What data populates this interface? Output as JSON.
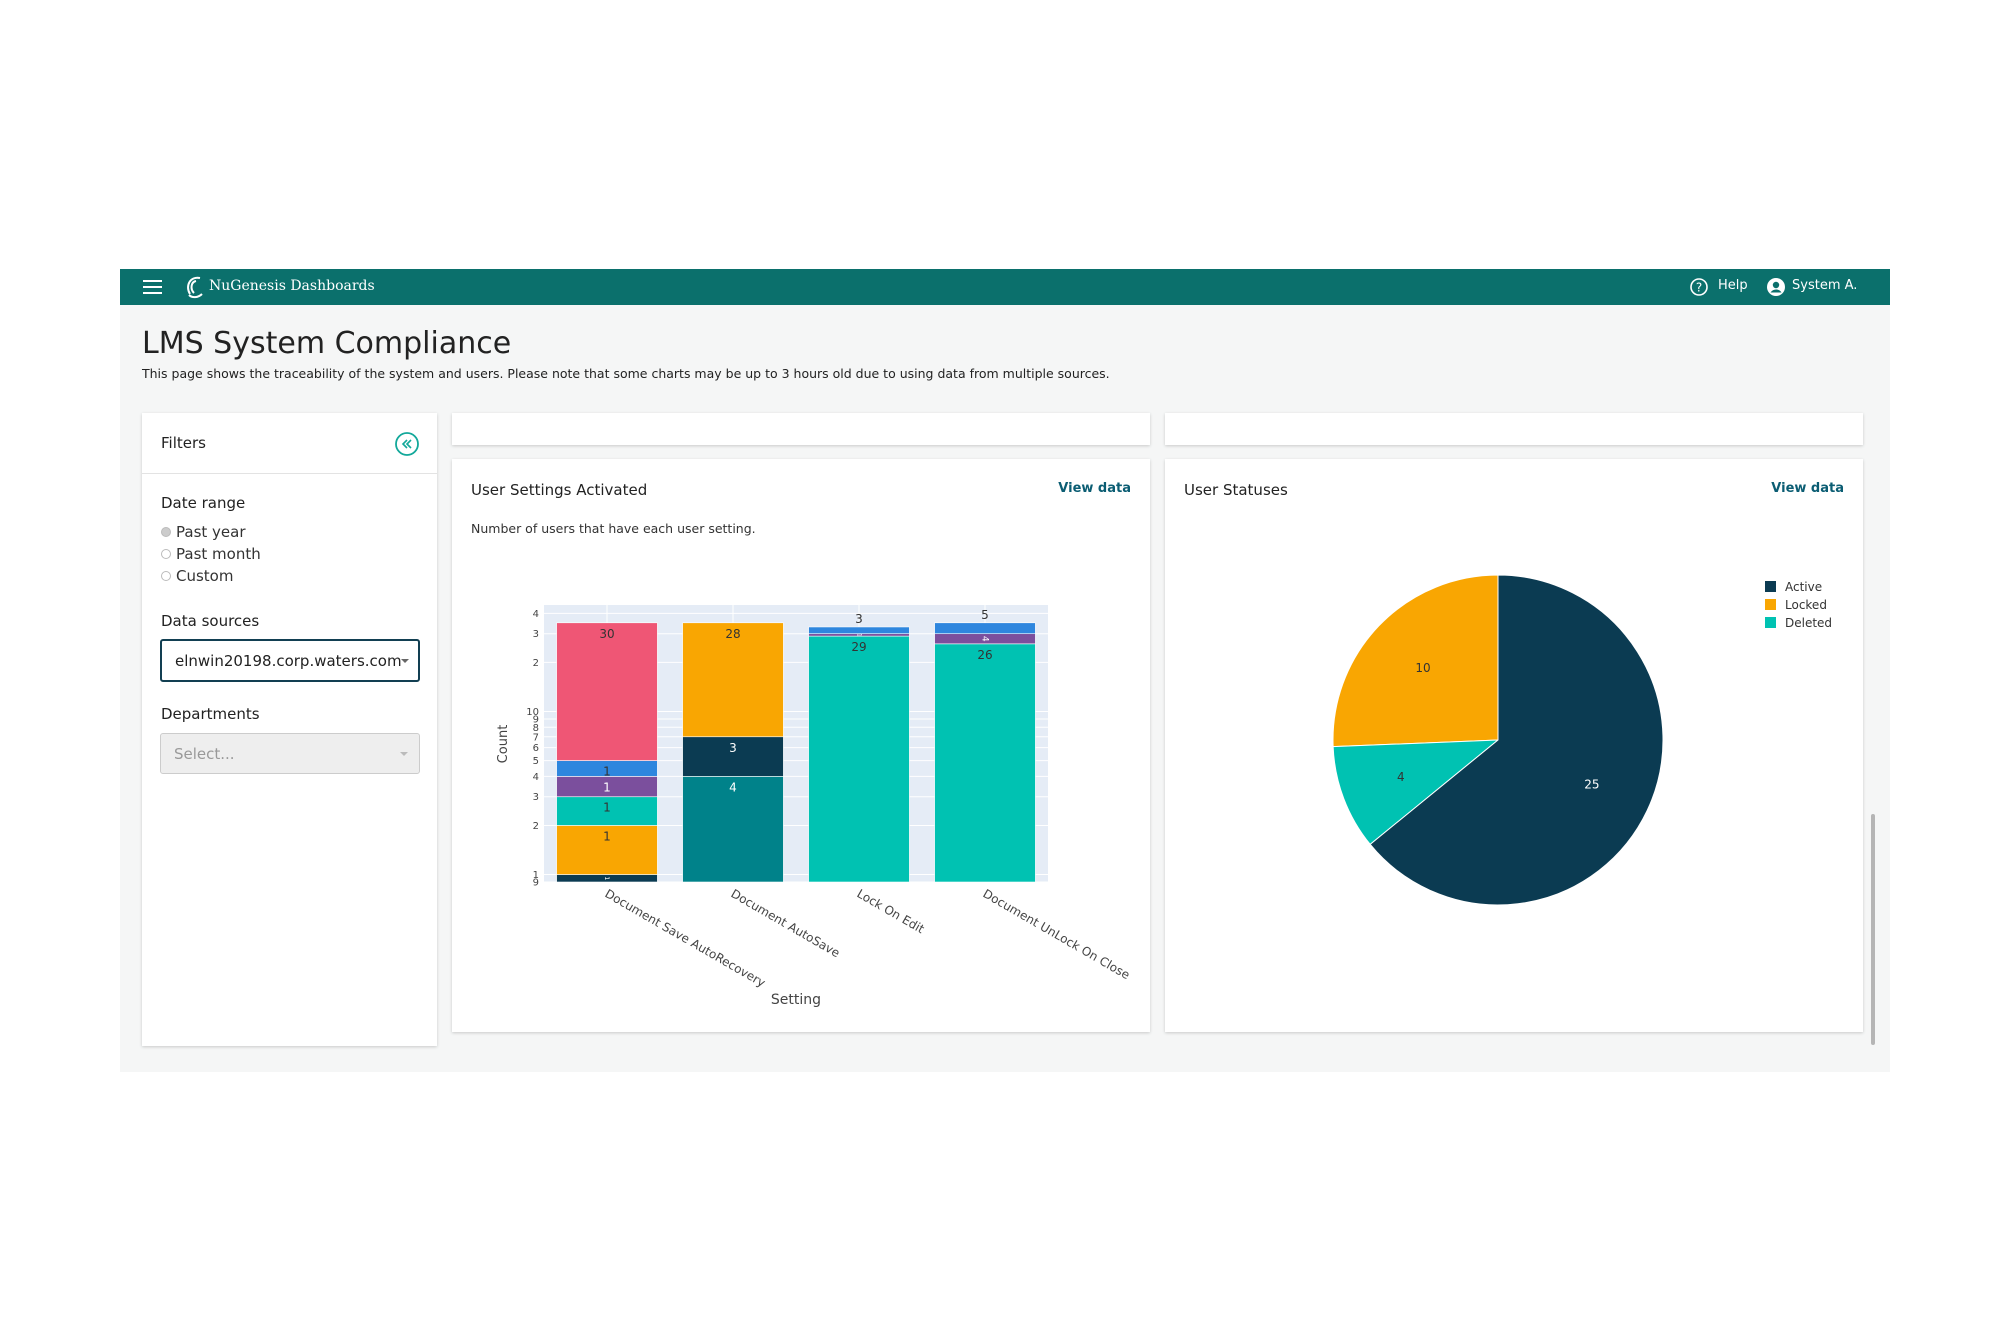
{
  "header": {
    "brand": "NuGenesis Dashboards",
    "help": "Help",
    "user": "System A."
  },
  "page": {
    "title": "LMS System Compliance",
    "description": "This page shows the traceability of the system and users. Please note that some charts may be up to 3 hours old due to using data from multiple sources."
  },
  "filters": {
    "title": "Filters",
    "date_range": {
      "label": "Date range",
      "options": [
        "Past year",
        "Past month",
        "Custom"
      ]
    },
    "data_sources": {
      "label": "Data sources",
      "value": "elnwin20198.corp.waters.com"
    },
    "departments": {
      "label": "Departments",
      "placeholder": "Select..."
    }
  },
  "chart_data": [
    {
      "type": "bar",
      "title": "User Settings Activated",
      "action": "View data",
      "subtitle": "Number of users that have each user setting.",
      "x_label": "Setting",
      "y_label": "Count",
      "stacked": true,
      "log_scale": true,
      "grid": true,
      "categories": [
        "Document Save AutoRecovery",
        "Document AutoSave",
        "Lock On Edit",
        "Document UnLock On Close"
      ],
      "series": [
        {
          "color": "#00828a",
          "values": [
            null,
            4,
            null,
            null
          ]
        },
        {
          "color": "#0b3b52",
          "values": [
            1,
            3,
            null,
            null
          ]
        },
        {
          "color": "#f9a602",
          "values": [
            1,
            28,
            null,
            null
          ]
        },
        {
          "color": "#00c2b2",
          "values": [
            1,
            null,
            29,
            26
          ]
        },
        {
          "color": "#7b4f9d",
          "values": [
            1,
            null,
            1,
            4
          ]
        },
        {
          "color": "#2e86de",
          "values": [
            1,
            null,
            3,
            5
          ]
        },
        {
          "color": "#ef5675",
          "values": [
            30,
            null,
            null,
            null
          ]
        }
      ],
      "ylim": [
        0.9,
        45
      ],
      "yticks": [
        {
          "value": 0.9,
          "label": "9"
        },
        1,
        2,
        3,
        4,
        5,
        6,
        7,
        8,
        9,
        10,
        {
          "value": 20,
          "label": "2"
        },
        {
          "value": 30,
          "label": "3"
        },
        {
          "value": 40,
          "label": "4"
        }
      ]
    },
    {
      "type": "pie",
      "title": "User Statuses",
      "action": "View data",
      "categories": [
        "Active",
        "Locked",
        "Deleted"
      ],
      "values": [
        25,
        10,
        4
      ],
      "colors": [
        "#0b3b52",
        "#f9a602",
        "#00c2b2"
      ],
      "legend": "top-right"
    }
  ]
}
